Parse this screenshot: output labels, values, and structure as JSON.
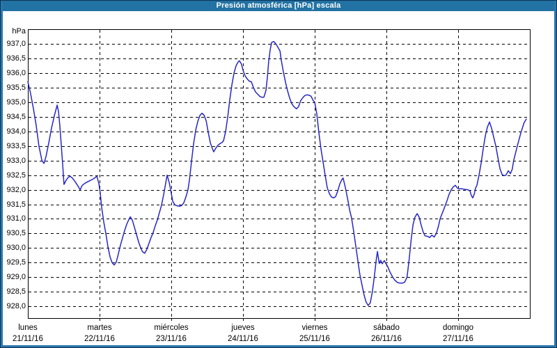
{
  "window": {
    "title": "Presión atmosférica [hPa] escala"
  },
  "chart": {
    "unit_label": "hPa",
    "y_tick_labels": [
      "937,0",
      "936,5",
      "936,0",
      "935,5",
      "935,0",
      "934,5",
      "934,0",
      "933,5",
      "933,0",
      "932,5",
      "932,0",
      "931,5",
      "931,0",
      "930,5",
      "930,0",
      "929,5",
      "929,0",
      "928,5",
      "928,0"
    ],
    "day_labels": [
      {
        "name": "lunes",
        "date": "21/11/16"
      },
      {
        "name": "martes",
        "date": "22/11/16"
      },
      {
        "name": "miércoles",
        "date": "23/11/16"
      },
      {
        "name": "jueves",
        "date": "24/11/16"
      },
      {
        "name": "viernes",
        "date": "25/11/16"
      },
      {
        "name": "sábado",
        "date": "26/11/16"
      },
      {
        "name": "domingo",
        "date": "27/11/16"
      }
    ]
  },
  "colors": {
    "titlebar": "#2272a3",
    "frame": "#2a76ab",
    "frame_outer": "#0d3357",
    "line": "#2626c6",
    "grid": "#000000",
    "background": "#ffffff"
  },
  "chart_data": {
    "type": "line",
    "title": "Presión atmosférica [hPa] escala",
    "ylabel": "hPa",
    "x_unit": "hours since Monday 21/11/16 00:00",
    "xlim": [
      0,
      168
    ],
    "ylim": [
      927.6,
      937.5
    ],
    "y_ticks": [
      937.0,
      936.5,
      936.0,
      935.5,
      935.0,
      934.5,
      934.0,
      933.5,
      933.0,
      932.5,
      932.0,
      931.5,
      931.0,
      930.5,
      930.0,
      929.5,
      929.0,
      928.5,
      928.0
    ],
    "x_day_boundaries_hours": [
      24,
      48,
      72,
      96,
      120,
      144
    ],
    "grid": "dashed",
    "series": [
      {
        "color": "#2626c6",
        "points": [
          [
            0,
            935.7
          ],
          [
            0.9,
            935.3
          ],
          [
            1.9,
            934.75
          ],
          [
            2.8,
            934.2
          ],
          [
            3.7,
            933.5
          ],
          [
            4.7,
            933.0
          ],
          [
            5.4,
            932.9
          ],
          [
            6.1,
            933.15
          ],
          [
            7,
            933.6
          ],
          [
            7.9,
            934.1
          ],
          [
            8.9,
            934.55
          ],
          [
            9.8,
            934.9
          ],
          [
            10.3,
            934.65
          ],
          [
            10.7,
            934.2
          ],
          [
            11.2,
            933.5
          ],
          [
            11.7,
            932.8
          ],
          [
            12.1,
            932.18
          ],
          [
            12.8,
            932.32
          ],
          [
            13.5,
            932.42
          ],
          [
            14.2,
            932.46
          ],
          [
            14.9,
            932.4
          ],
          [
            15.8,
            932.28
          ],
          [
            16.8,
            932.12
          ],
          [
            17.5,
            932.0
          ],
          [
            18.2,
            932.15
          ],
          [
            19.1,
            932.22
          ],
          [
            20,
            932.27
          ],
          [
            21,
            932.32
          ],
          [
            21.9,
            932.37
          ],
          [
            22.6,
            932.42
          ],
          [
            23.1,
            932.47
          ],
          [
            23.8,
            932.2
          ],
          [
            24.2,
            931.9
          ],
          [
            24.7,
            931.4
          ],
          [
            25.4,
            930.9
          ],
          [
            26.1,
            930.5
          ],
          [
            26.8,
            930.05
          ],
          [
            27.5,
            929.7
          ],
          [
            28.2,
            929.5
          ],
          [
            28.9,
            929.42
          ],
          [
            29.6,
            929.52
          ],
          [
            30.3,
            929.8
          ],
          [
            31,
            930.1
          ],
          [
            31.7,
            930.35
          ],
          [
            32.4,
            930.6
          ],
          [
            33.1,
            930.82
          ],
          [
            33.8,
            930.98
          ],
          [
            34.3,
            931.07
          ],
          [
            35,
            930.95
          ],
          [
            35.7,
            930.7
          ],
          [
            36.4,
            930.45
          ],
          [
            37.1,
            930.2
          ],
          [
            37.8,
            930.0
          ],
          [
            38.4,
            929.87
          ],
          [
            39.1,
            929.82
          ],
          [
            39.8,
            929.95
          ],
          [
            40.5,
            930.15
          ],
          [
            41.2,
            930.35
          ],
          [
            41.9,
            930.52
          ],
          [
            42.6,
            930.75
          ],
          [
            43.3,
            930.95
          ],
          [
            44,
            931.2
          ],
          [
            44.7,
            931.45
          ],
          [
            45.4,
            931.8
          ],
          [
            46.1,
            932.2
          ],
          [
            46.6,
            932.5
          ],
          [
            47.3,
            932.25
          ],
          [
            47.8,
            932.0
          ],
          [
            48.5,
            931.6
          ],
          [
            49.2,
            931.48
          ],
          [
            49.9,
            931.45
          ],
          [
            50.8,
            931.43
          ],
          [
            51.5,
            931.46
          ],
          [
            52.2,
            931.55
          ],
          [
            52.9,
            931.75
          ],
          [
            53.6,
            932.0
          ],
          [
            54.1,
            932.35
          ],
          [
            54.8,
            933.0
          ],
          [
            55.5,
            933.6
          ],
          [
            56.2,
            934.05
          ],
          [
            56.9,
            934.35
          ],
          [
            57.6,
            934.55
          ],
          [
            58.3,
            934.62
          ],
          [
            59,
            934.55
          ],
          [
            59.7,
            934.35
          ],
          [
            60.4,
            933.95
          ],
          [
            61.1,
            933.6
          ],
          [
            61.8,
            933.4
          ],
          [
            62.2,
            933.3
          ],
          [
            62.9,
            933.42
          ],
          [
            63.6,
            933.52
          ],
          [
            64.3,
            933.58
          ],
          [
            65,
            933.62
          ],
          [
            65.5,
            933.68
          ],
          [
            66.2,
            934.0
          ],
          [
            66.9,
            934.5
          ],
          [
            67.6,
            935.1
          ],
          [
            68.3,
            935.6
          ],
          [
            69,
            936.0
          ],
          [
            69.7,
            936.25
          ],
          [
            70.4,
            936.38
          ],
          [
            70.8,
            936.42
          ],
          [
            71.5,
            936.3
          ],
          [
            72,
            936.1
          ],
          [
            72.7,
            935.9
          ],
          [
            73.4,
            935.8
          ],
          [
            74.1,
            935.72
          ],
          [
            74.8,
            935.7
          ],
          [
            75.5,
            935.5
          ],
          [
            76.2,
            935.35
          ],
          [
            76.9,
            935.28
          ],
          [
            77.6,
            935.2
          ],
          [
            78.3,
            935.17
          ],
          [
            79,
            935.17
          ],
          [
            79.7,
            935.4
          ],
          [
            80.2,
            935.9
          ],
          [
            80.6,
            936.4
          ],
          [
            81.1,
            936.8
          ],
          [
            81.6,
            937.05
          ],
          [
            82.3,
            937.08
          ],
          [
            83,
            937.0
          ],
          [
            83.7,
            936.88
          ],
          [
            84.4,
            936.75
          ],
          [
            84.8,
            936.45
          ],
          [
            85.5,
            936.05
          ],
          [
            86.2,
            935.7
          ],
          [
            86.9,
            935.4
          ],
          [
            87.6,
            935.15
          ],
          [
            88.3,
            934.95
          ],
          [
            89,
            934.85
          ],
          [
            89.9,
            934.77
          ],
          [
            90.6,
            934.85
          ],
          [
            91.3,
            935.05
          ],
          [
            92,
            935.15
          ],
          [
            92.7,
            935.23
          ],
          [
            93.4,
            935.25
          ],
          [
            94.1,
            935.24
          ],
          [
            94.8,
            935.2
          ],
          [
            95.5,
            935.05
          ],
          [
            96,
            935.0
          ],
          [
            96.7,
            934.6
          ],
          [
            97.4,
            933.95
          ],
          [
            98.1,
            933.4
          ],
          [
            98.8,
            932.95
          ],
          [
            99.5,
            932.5
          ],
          [
            100.2,
            932.07
          ],
          [
            100.9,
            931.87
          ],
          [
            101.6,
            931.75
          ],
          [
            102.3,
            931.72
          ],
          [
            103,
            931.76
          ],
          [
            103.7,
            931.95
          ],
          [
            104.4,
            932.2
          ],
          [
            105.1,
            932.35
          ],
          [
            105.5,
            932.4
          ],
          [
            106.2,
            932.1
          ],
          [
            107,
            931.7
          ],
          [
            107.7,
            931.3
          ],
          [
            108.3,
            931.05
          ],
          [
            109,
            930.6
          ],
          [
            109.7,
            930.1
          ],
          [
            110.4,
            929.6
          ],
          [
            111.1,
            929.1
          ],
          [
            111.8,
            928.75
          ],
          [
            112.5,
            928.4
          ],
          [
            113.2,
            928.15
          ],
          [
            113.9,
            928.03
          ],
          [
            114.6,
            928.12
          ],
          [
            115.3,
            928.5
          ],
          [
            116,
            929.05
          ],
          [
            116.6,
            929.6
          ],
          [
            117,
            929.88
          ],
          [
            117.6,
            929.47
          ],
          [
            118.1,
            929.58
          ],
          [
            118.6,
            929.46
          ],
          [
            119.3,
            929.57
          ],
          [
            120.5,
            929.35
          ],
          [
            121.2,
            929.18
          ],
          [
            122,
            929.02
          ],
          [
            122.8,
            928.9
          ],
          [
            123.7,
            928.82
          ],
          [
            124.4,
            928.8
          ],
          [
            125.4,
            928.8
          ],
          [
            126.1,
            928.83
          ],
          [
            126.9,
            929.0
          ],
          [
            127.6,
            929.6
          ],
          [
            128.3,
            930.3
          ],
          [
            128.9,
            930.8
          ],
          [
            129.5,
            931.05
          ],
          [
            130.3,
            931.18
          ],
          [
            131,
            931.05
          ],
          [
            131.6,
            930.8
          ],
          [
            132.3,
            930.55
          ],
          [
            132.9,
            930.42
          ],
          [
            133.8,
            930.4
          ],
          [
            134.5,
            930.36
          ],
          [
            135.2,
            930.44
          ],
          [
            136,
            930.38
          ],
          [
            136.7,
            930.5
          ],
          [
            137.4,
            930.75
          ],
          [
            138,
            931.02
          ],
          [
            138.7,
            931.2
          ],
          [
            139.3,
            931.35
          ],
          [
            140.2,
            931.6
          ],
          [
            141,
            931.85
          ],
          [
            141.7,
            932.0
          ],
          [
            142.4,
            932.1
          ],
          [
            143.1,
            932.15
          ],
          [
            143.8,
            932.05
          ],
          [
            144.5,
            932.03
          ],
          [
            145.4,
            932.03
          ],
          [
            146.3,
            932.01
          ],
          [
            147.3,
            932.0
          ],
          [
            148,
            931.95
          ],
          [
            148.4,
            931.8
          ],
          [
            148.9,
            931.72
          ],
          [
            149.4,
            931.85
          ],
          [
            149.8,
            932.05
          ],
          [
            150.3,
            932.15
          ],
          [
            151,
            932.5
          ],
          [
            151.7,
            932.9
          ],
          [
            152.4,
            933.4
          ],
          [
            153.1,
            933.85
          ],
          [
            153.8,
            934.15
          ],
          [
            154.5,
            934.32
          ],
          [
            155.2,
            934.1
          ],
          [
            155.9,
            933.8
          ],
          [
            156.6,
            933.5
          ],
          [
            157.3,
            933.1
          ],
          [
            158,
            932.72
          ],
          [
            158.7,
            932.52
          ],
          [
            159.4,
            932.48
          ],
          [
            160,
            932.5
          ],
          [
            160.8,
            932.65
          ],
          [
            161.5,
            932.55
          ],
          [
            162.1,
            932.7
          ],
          [
            162.6,
            933.0
          ],
          [
            163.8,
            933.5
          ],
          [
            165,
            933.95
          ],
          [
            166.1,
            934.3
          ],
          [
            166.8,
            934.42
          ]
        ]
      }
    ]
  }
}
